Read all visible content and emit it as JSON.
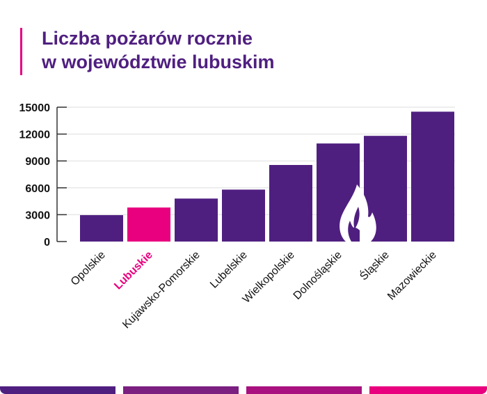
{
  "header": {
    "title_line1": "Liczba pożarów rocznie",
    "title_line2": "w województwie lubuskim"
  },
  "colors": {
    "bar": "#4f1f80",
    "highlight": "#e8007e",
    "footer": [
      "#4f1f80",
      "#7b1f80",
      "#a8117f",
      "#e8007e"
    ]
  },
  "chart_data": {
    "type": "bar",
    "categories": [
      "Opolskie",
      "Lubuskie",
      "Kujawsko-Pomorskie",
      "Lubelskie",
      "Wielkopolskie",
      "Dolnośląskie",
      "Śląskie",
      "Mazowieckie"
    ],
    "values": [
      2950,
      3800,
      4800,
      5800,
      8550,
      10950,
      11800,
      14500
    ],
    "highlight": "Lubuskie",
    "ylim": [
      0,
      15000
    ],
    "yticks": [
      0,
      3000,
      6000,
      9000,
      12000,
      15000
    ],
    "grid": true,
    "icon": "flame-icon"
  }
}
